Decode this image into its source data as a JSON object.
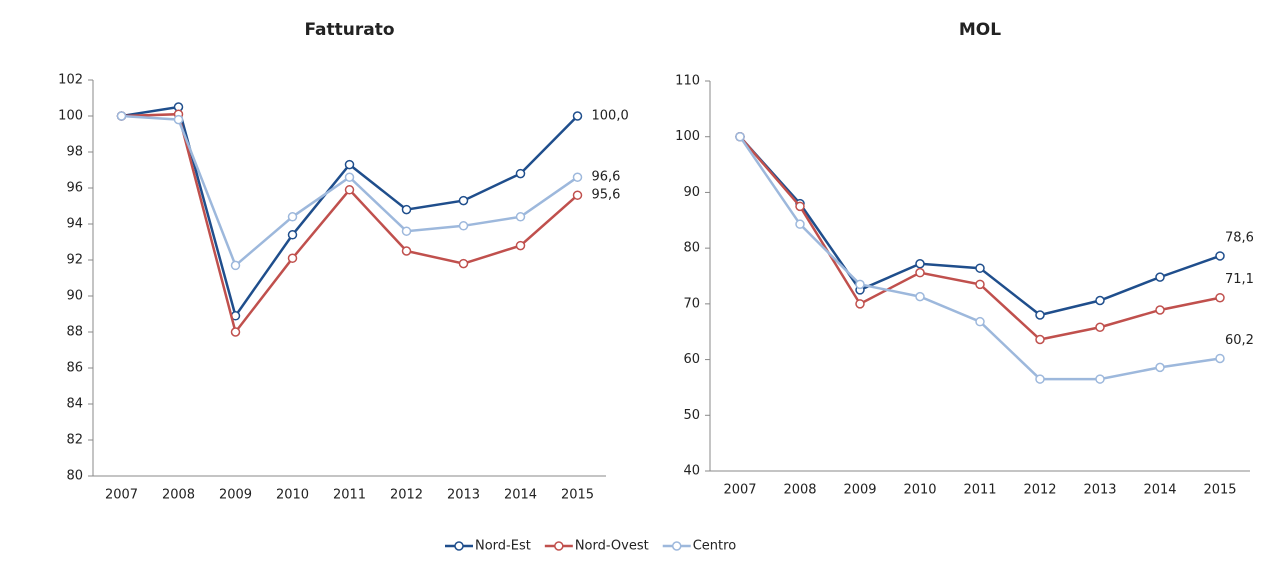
{
  "chart_data": [
    {
      "type": "line",
      "title": "Fatturato",
      "categories": [
        "2007",
        "2008",
        "2009",
        "2010",
        "2011",
        "2012",
        "2013",
        "2014",
        "2015"
      ],
      "ylim": [
        80,
        102
      ],
      "yticks": [
        80,
        82,
        84,
        86,
        88,
        90,
        92,
        94,
        96,
        98,
        100,
        102
      ],
      "series": [
        {
          "name": "Nord-Est",
          "color": "#1f4e8c",
          "values": [
            100,
            100.5,
            88.9,
            93.4,
            97.3,
            94.8,
            95.3,
            96.8,
            100.0
          ],
          "value_labels": [
            null,
            null,
            null,
            null,
            null,
            null,
            null,
            null,
            "100,0"
          ]
        },
        {
          "name": "Nord-Ovest",
          "color": "#c0504d",
          "values": [
            100,
            100.1,
            88.0,
            92.1,
            95.9,
            92.5,
            91.8,
            92.8,
            95.6
          ],
          "value_labels": [
            null,
            null,
            null,
            null,
            null,
            null,
            null,
            null,
            "95,6"
          ]
        },
        {
          "name": "Centro",
          "color": "#9db8dc",
          "values": [
            100,
            99.8,
            91.7,
            94.4,
            96.6,
            93.6,
            93.9,
            94.4,
            96.6
          ],
          "value_labels": [
            null,
            null,
            null,
            null,
            null,
            null,
            null,
            null,
            "96,6"
          ]
        }
      ]
    },
    {
      "type": "line",
      "title": "MOL",
      "categories": [
        "2007",
        "2008",
        "2009",
        "2010",
        "2011",
        "2012",
        "2013",
        "2014",
        "2015"
      ],
      "ylim": [
        40,
        110
      ],
      "yticks": [
        40,
        50,
        60,
        70,
        80,
        90,
        100,
        110
      ],
      "series": [
        {
          "name": "Nord-Est",
          "color": "#1f4e8c",
          "values": [
            100,
            88,
            72.5,
            77.2,
            76.4,
            68,
            70.6,
            74.8,
            78.6
          ],
          "value_labels": [
            null,
            null,
            null,
            null,
            null,
            null,
            null,
            null,
            "78,6"
          ]
        },
        {
          "name": "Nord-Ovest",
          "color": "#c0504d",
          "values": [
            100,
            87.5,
            70,
            75.6,
            73.5,
            63.6,
            65.8,
            68.9,
            71.1
          ],
          "value_labels": [
            null,
            null,
            null,
            null,
            null,
            null,
            null,
            null,
            "71,1"
          ]
        },
        {
          "name": "Centro",
          "color": "#9db8dc",
          "values": [
            100,
            84.3,
            73.5,
            71.3,
            66.8,
            56.5,
            56.5,
            58.6,
            60.2
          ],
          "value_labels": [
            null,
            null,
            null,
            null,
            null,
            null,
            null,
            null,
            "60,2"
          ]
        }
      ]
    }
  ]
}
